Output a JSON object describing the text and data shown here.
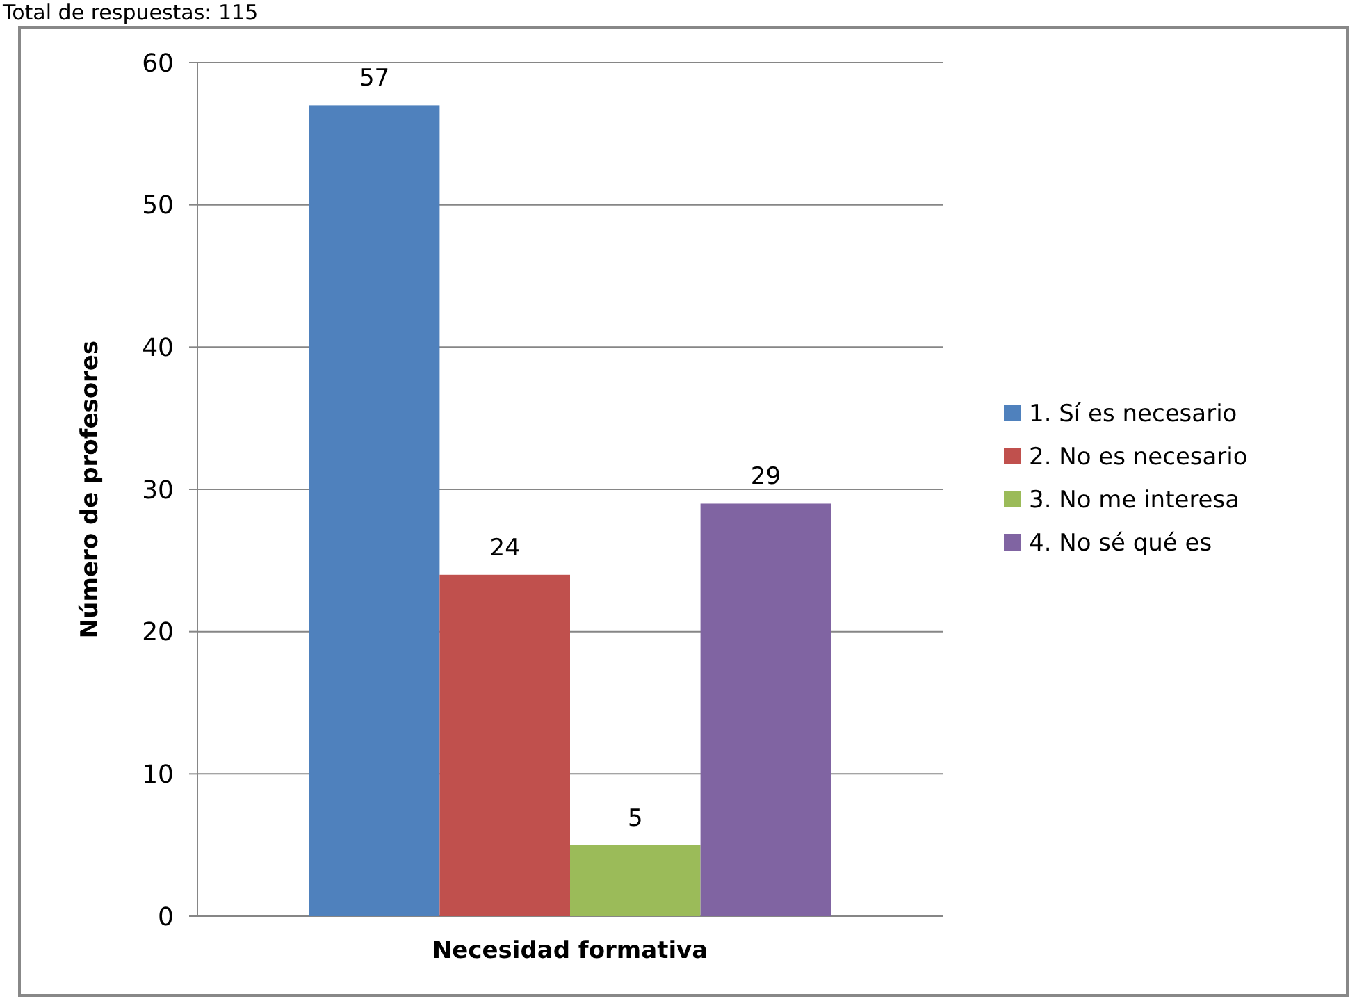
{
  "chart_data": {
    "type": "bar",
    "annotations": [
      "Total de respuestas: 115"
    ],
    "xlabel": "Necesidad formativa",
    "ylabel": "Número de profesores",
    "categories": [
      null
    ],
    "series": [
      {
        "name": "1. Sí es necesario",
        "color": "#4f81bd",
        "values": [
          57
        ]
      },
      {
        "name": "2. No es necesario",
        "color": "#c0504d",
        "values": [
          24
        ]
      },
      {
        "name": "3. No me interesa",
        "color": "#9bbb59",
        "values": [
          5
        ]
      },
      {
        "name": "4. No sé qué es",
        "color": "#8064a2",
        "values": [
          29
        ]
      }
    ],
    "ylim": [
      0,
      60
    ],
    "yticks": [
      0,
      10,
      20,
      30,
      40,
      50,
      60
    ],
    "grid": "y",
    "legend": "right",
    "data_labels": true
  }
}
